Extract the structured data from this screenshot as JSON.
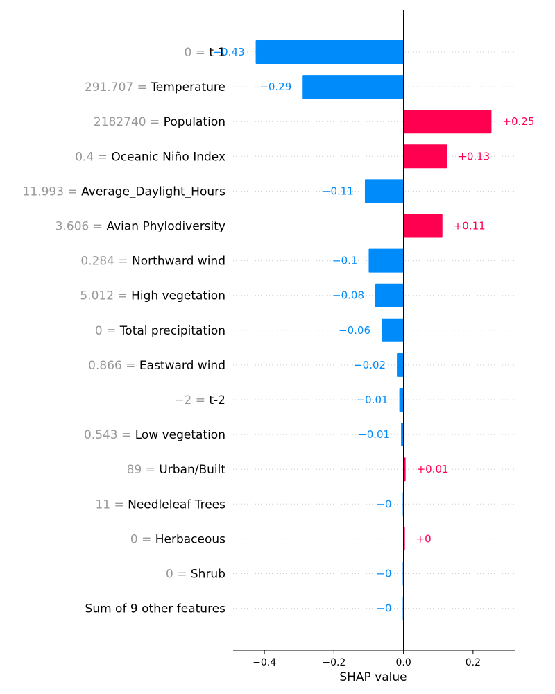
{
  "chart_data": {
    "type": "bar",
    "orientation": "horizontal",
    "title": "",
    "xlabel": "SHAP value",
    "ylabel": "",
    "xlim": [
      -0.49,
      0.32
    ],
    "x_ticks": [
      -0.4,
      -0.2,
      0.0,
      0.2
    ],
    "x_tick_labels": [
      "−0.4",
      "−0.2",
      "0.0",
      "0.2"
    ],
    "grid": "dotted horizontal guide per row",
    "colors": {
      "positive": "#ff0051",
      "negative": "#008bfb",
      "axis": "#000000",
      "feature_value": "#999999"
    },
    "rows": [
      {
        "value": "0",
        "feature": "t-1",
        "shap": -0.425,
        "label": "−0.43"
      },
      {
        "value": "291.707",
        "feature": "Temperature",
        "shap": -0.29,
        "label": "−0.29"
      },
      {
        "value": "2182740",
        "feature": "Population",
        "shap": 0.253,
        "label": "+0.25"
      },
      {
        "value": "0.4",
        "feature": "Oceanic Niño Index",
        "shap": 0.125,
        "label": "+0.13"
      },
      {
        "value": "11.993",
        "feature": "Average_Daylight_Hours",
        "shap": -0.111,
        "label": "−0.11"
      },
      {
        "value": "3.606",
        "feature": "Avian Phylodiversity",
        "shap": 0.112,
        "label": "+0.11"
      },
      {
        "value": "0.284",
        "feature": "Northward wind",
        "shap": -0.1,
        "label": "−0.1"
      },
      {
        "value": "5.012",
        "feature": "High vegetation",
        "shap": -0.081,
        "label": "−0.08"
      },
      {
        "value": "0",
        "feature": "Total precipitation",
        "shap": -0.063,
        "label": "−0.06"
      },
      {
        "value": "0.866",
        "feature": "Eastward wind",
        "shap": -0.019,
        "label": "−0.02"
      },
      {
        "value": "−2",
        "feature": "t-2",
        "shap": -0.012,
        "label": "−0.01"
      },
      {
        "value": "0.543",
        "feature": "Low vegetation",
        "shap": -0.007,
        "label": "−0.01"
      },
      {
        "value": "89",
        "feature": "Urban/Built",
        "shap": 0.006,
        "label": "+0.01"
      },
      {
        "value": "11",
        "feature": "Needleleaf Trees",
        "shap": -0.002,
        "label": "−0"
      },
      {
        "value": "0",
        "feature": "Herbaceous",
        "shap": 0.004,
        "label": "+0"
      },
      {
        "value": "0",
        "feature": "Shrub",
        "shap": -0.002,
        "label": "−0"
      },
      {
        "value": "",
        "feature": "Sum of 9 other features",
        "shap": -0.002,
        "label": "−0"
      }
    ]
  }
}
